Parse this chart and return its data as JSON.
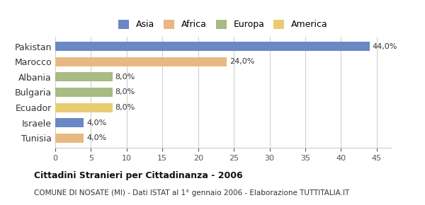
{
  "categories": [
    "Pakistan",
    "Marocco",
    "Albania",
    "Bulgaria",
    "Ecuador",
    "Israele",
    "Tunisia"
  ],
  "values": [
    44.0,
    24.0,
    8.0,
    8.0,
    8.0,
    4.0,
    4.0
  ],
  "bar_colors": [
    "#6b88c4",
    "#e8b882",
    "#a8bb82",
    "#a8bb82",
    "#e8cc72",
    "#6b88c4",
    "#e8b882"
  ],
  "labels": [
    "44,0%",
    "24,0%",
    "8,0%",
    "8,0%",
    "8,0%",
    "4,0%",
    "4,0%"
  ],
  "legend_labels": [
    "Asia",
    "Africa",
    "Europa",
    "America"
  ],
  "legend_colors": [
    "#6b88c4",
    "#e8b882",
    "#a8bb82",
    "#e8cc72"
  ],
  "xlim": [
    0,
    47
  ],
  "xticks": [
    0,
    5,
    10,
    15,
    20,
    25,
    30,
    35,
    40,
    45
  ],
  "title": "Cittadini Stranieri per Cittadinanza - 2006",
  "subtitle": "COMUNE DI NOSATE (MI) - Dati ISTAT al 1° gennaio 2006 - Elaborazione TUTTITALIA.IT",
  "background_color": "#ffffff",
  "grid_color": "#cccccc",
  "bar_height": 0.6
}
